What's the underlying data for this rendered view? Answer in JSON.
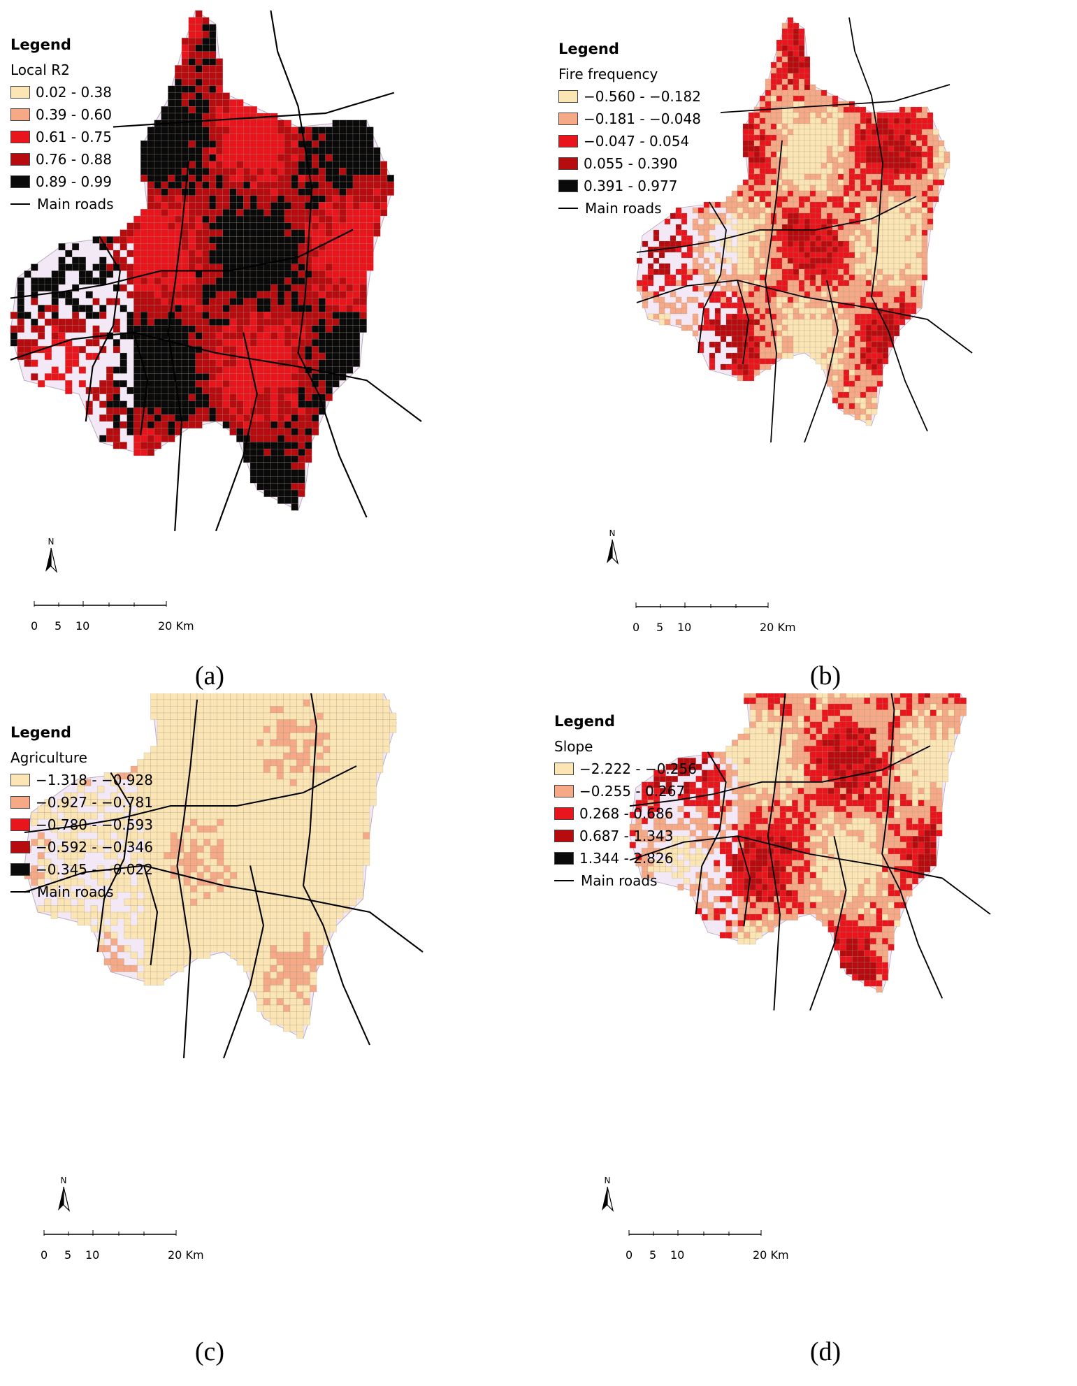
{
  "colors": {
    "background_region": "#f3e8f5",
    "class1": "#fbe5b4",
    "class2": "#f5a987",
    "class3": "#e8151c",
    "class4": "#b60c10",
    "class5": "#0a0a0a",
    "grid": "#9a8f80",
    "road": "#000000"
  },
  "icons": {
    "north_arrow": "north-arrow-icon"
  },
  "panels": [
    {
      "caption": "(a)",
      "legend_title": "Legend",
      "variable": "Local R2",
      "classes": [
        "0.02 - 0.38",
        "0.39 - 0.60",
        "0.61 - 0.75",
        "0.76 - 0.88",
        "0.89 - 0.99"
      ],
      "roads_label": "Main roads",
      "north_label": "N",
      "scale_labels": [
        "0",
        "5",
        "10",
        "20 Km"
      ],
      "dominant_class": 5
    },
    {
      "caption": "(b)",
      "legend_title": "Legend",
      "variable": "Fire frequency",
      "classes": [
        "−0.560 - −0.182",
        "−0.181 - −0.048",
        "−0.047 - 0.054",
        "0.055 - 0.390",
        "0.391 - 0.977"
      ],
      "roads_label": "Main roads",
      "north_label": "N",
      "scale_labels": [
        "0",
        "5",
        "10",
        "20 Km"
      ],
      "dominant_class": 3
    },
    {
      "caption": "(c)",
      "legend_title": "Legend",
      "variable": "Agriculture",
      "classes": [
        "−1.318 - −0.928",
        "−0.927 - −0.781",
        "−0.780 - −0.593",
        "−0.592 - −0.346",
        "−0.345 - −0.022"
      ],
      "roads_label": "Main roads",
      "north_label": "N",
      "scale_labels": [
        "0",
        "5",
        "10",
        "20 Km"
      ],
      "dominant_class": 1
    },
    {
      "caption": "(d)",
      "legend_title": "Legend",
      "variable": "Slope",
      "classes": [
        "−2.222 - −0.256",
        "−0.255 - 0.267",
        "0.268 - 0.686",
        "0.687 - 1.343",
        "1.344 - 2.826"
      ],
      "roads_label": "Main roads",
      "north_label": "N",
      "scale_labels": [
        "0",
        "5",
        "10",
        "20 Km"
      ],
      "dominant_class": 3
    }
  ]
}
